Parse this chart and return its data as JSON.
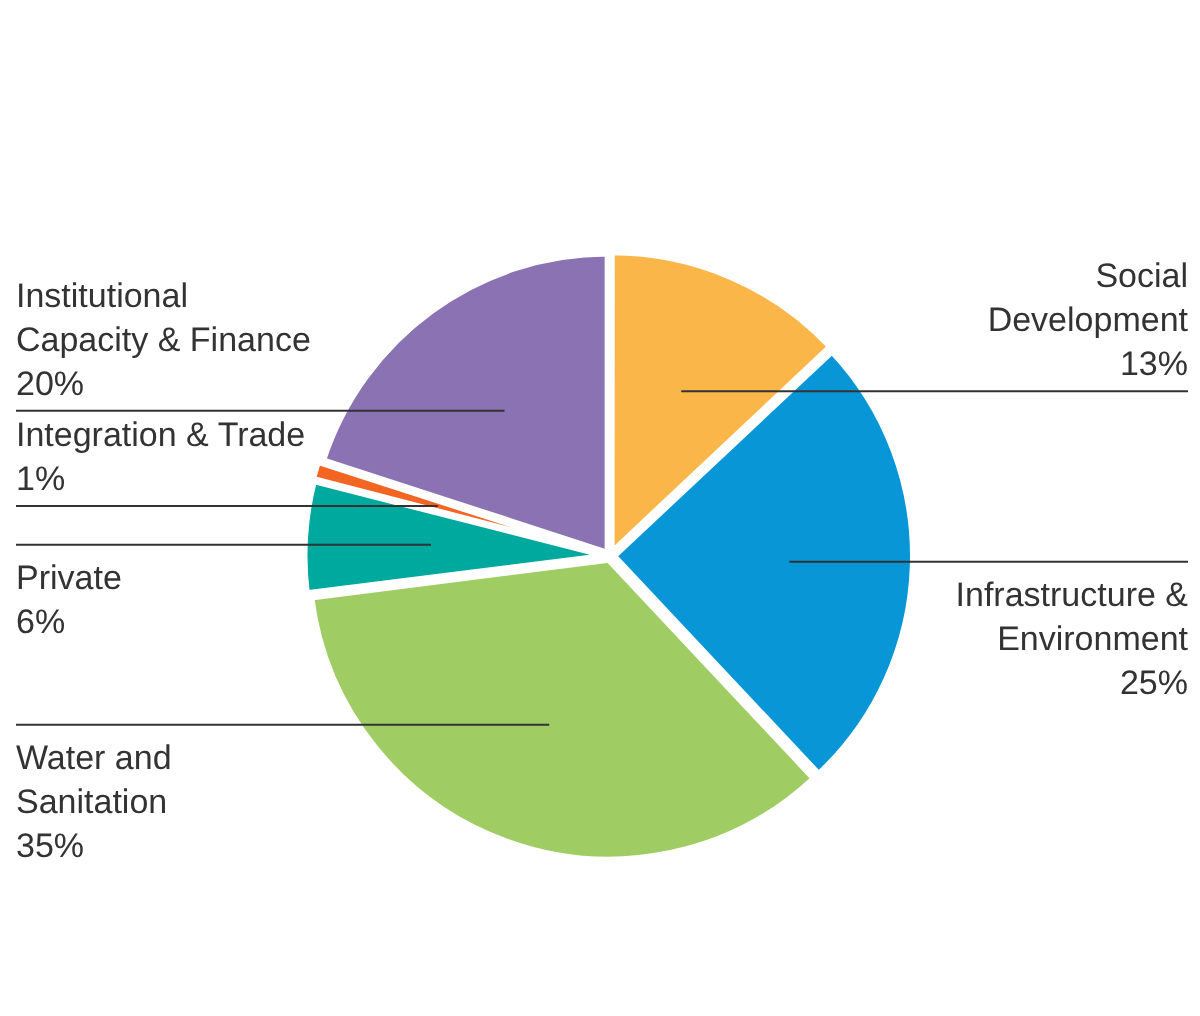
{
  "chart_data": {
    "type": "pie",
    "categories": [
      "Social Development",
      "Infrastructure & Environment",
      "Water and Sanitation",
      "Private",
      "Integration & Trade",
      "Institutional Capacity & Finance"
    ],
    "values": [
      13,
      25,
      35,
      6,
      1,
      20
    ],
    "colors": [
      "#fbb64a",
      "#0896d6",
      "#a0cd63",
      "#00a99d",
      "#f26522",
      "#8a72b3"
    ],
    "value_labels": [
      "13%",
      "25%",
      "35%",
      "6%",
      "1%",
      "20%"
    ],
    "legend": false
  }
}
